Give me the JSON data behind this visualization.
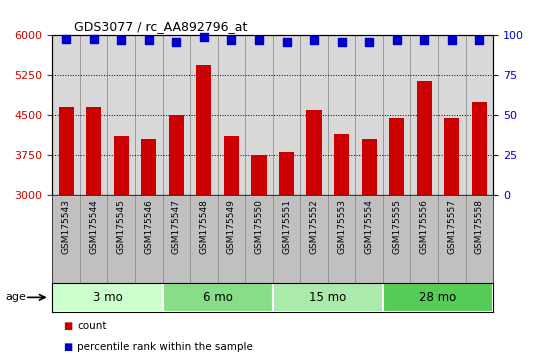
{
  "title": "GDS3077 / rc_AA892796_at",
  "samples": [
    "GSM175543",
    "GSM175544",
    "GSM175545",
    "GSM175546",
    "GSM175547",
    "GSM175548",
    "GSM175549",
    "GSM175550",
    "GSM175551",
    "GSM175552",
    "GSM175553",
    "GSM175554",
    "GSM175555",
    "GSM175556",
    "GSM175557",
    "GSM175558"
  ],
  "bar_values": [
    4650,
    4650,
    4100,
    4050,
    4500,
    5450,
    4100,
    3750,
    3800,
    4600,
    4150,
    4050,
    4450,
    5150,
    4450,
    4750
  ],
  "percentile_values": [
    98,
    98,
    97,
    97,
    96,
    99,
    97,
    97,
    96,
    97,
    96,
    96,
    97,
    97,
    97,
    97
  ],
  "bar_color": "#cc0000",
  "dot_color": "#0000cc",
  "ylim_left": [
    3000,
    6000
  ],
  "ylim_right": [
    0,
    100
  ],
  "yticks_left": [
    3000,
    3750,
    4500,
    5250,
    6000
  ],
  "yticks_right": [
    0,
    25,
    50,
    75,
    100
  ],
  "grid_values": [
    3750,
    4500,
    5250
  ],
  "age_groups": [
    {
      "label": "3 mo",
      "start": 0,
      "end": 4,
      "color": "#ccffcc"
    },
    {
      "label": "6 mo",
      "start": 4,
      "end": 8,
      "color": "#88dd88"
    },
    {
      "label": "15 mo",
      "start": 8,
      "end": 12,
      "color": "#aaeaaa"
    },
    {
      "label": "28 mo",
      "start": 12,
      "end": 16,
      "color": "#55cc55"
    }
  ],
  "legend_count_color": "#cc0000",
  "legend_dot_color": "#0000cc",
  "plot_bg_color": "#d8d8d8",
  "label_bg_color": "#c0c0c0",
  "dot_size": 40,
  "bar_width": 0.55,
  "age_label": "age"
}
